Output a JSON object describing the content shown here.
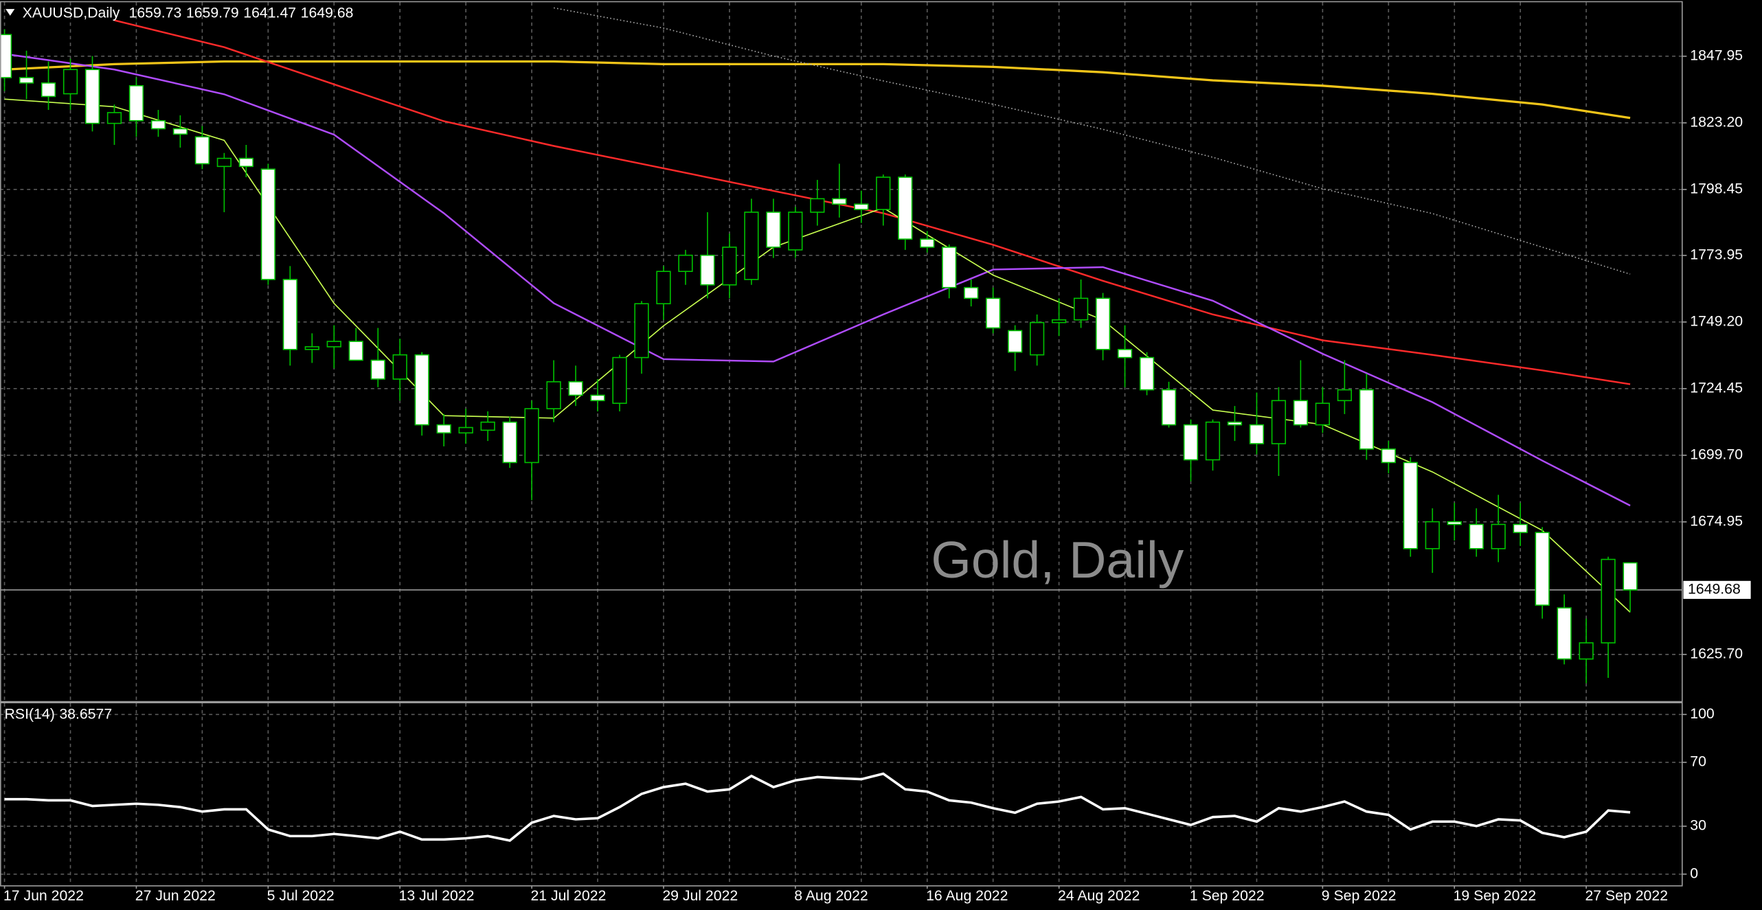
{
  "chart_data": [
    {
      "type": "candlestick",
      "symbol": "XAUUSD,Daily",
      "watermark": "Gold, Daily",
      "categories": [
        "17 Jun 2022",
        null,
        null,
        null,
        null,
        null,
        "27 Jun 2022",
        null,
        null,
        null,
        null,
        null,
        "5 Jul 2022",
        null,
        null,
        null,
        null,
        null,
        "13 Jul 2022",
        null,
        null,
        null,
        null,
        null,
        "21 Jul 2022",
        null,
        null,
        null,
        null,
        null,
        "29 Jul 2022",
        null,
        null,
        null,
        null,
        null,
        "8 Aug 2022",
        null,
        null,
        null,
        null,
        null,
        "16 Aug 2022",
        null,
        null,
        null,
        null,
        null,
        "24 Aug 2022",
        null,
        null,
        null,
        null,
        null,
        "1 Sep 2022",
        null,
        null,
        null,
        null,
        null,
        "9 Sep 2022",
        null,
        null,
        null,
        null,
        null,
        "19 Sep 2022",
        null,
        null,
        null,
        null,
        null,
        "27 Sep 2022",
        null,
        null
      ],
      "open": [
        1856,
        1840,
        1838,
        1834,
        1843,
        1823,
        1837,
        1824,
        1821,
        1818,
        1807,
        1810,
        1806,
        1765,
        1739,
        1740,
        1742,
        1735,
        1728,
        1737,
        1711,
        1708,
        1709,
        1712,
        1697,
        1717,
        1727,
        1722,
        1719,
        1736,
        1756,
        1768,
        1774,
        1763,
        1765,
        1790,
        1776,
        1790,
        1795,
        1793,
        1791,
        1803,
        1780,
        1777,
        1762,
        1758,
        1746,
        1737,
        1749,
        1750,
        1758,
        1739,
        1736,
        1724,
        1711,
        1698,
        1712,
        1711,
        1704,
        1720,
        1711,
        1720,
        1724,
        1702,
        1697,
        1665,
        1675,
        1674,
        1665,
        1674,
        1671,
        1643,
        1624,
        1630,
        1659.73
      ],
      "high": [
        1858,
        1850,
        1846,
        1847,
        1848,
        1830,
        1840,
        1828,
        1826,
        1822,
        1812,
        1815,
        1808,
        1770,
        1745,
        1748,
        1747,
        1747,
        1743,
        1738,
        1715,
        1717,
        1716,
        1714,
        1720,
        1735,
        1733,
        1728,
        1737,
        1757,
        1770,
        1776,
        1790,
        1782,
        1795,
        1795,
        1792,
        1802,
        1808,
        1798,
        1804,
        1804,
        1783,
        1778,
        1765,
        1762,
        1748,
        1752,
        1758,
        1765,
        1760,
        1748,
        1738,
        1727,
        1713,
        1713,
        1718,
        1723,
        1725,
        1735,
        1725,
        1735,
        1730,
        1705,
        1699,
        1680,
        1682,
        1680,
        1685,
        1682,
        1673,
        1648,
        1639,
        1662,
        1659.79
      ],
      "low": [
        1835,
        1832,
        1828,
        1828,
        1820,
        1815,
        1818,
        1818,
        1814,
        1806,
        1790,
        1803,
        1763,
        1733,
        1734,
        1732,
        1735,
        1725,
        1720,
        1707,
        1703,
        1704,
        1705,
        1695,
        1683,
        1712,
        1718,
        1716,
        1716,
        1730,
        1750,
        1763,
        1758,
        1758,
        1763,
        1773,
        1773,
        1785,
        1788,
        1786,
        1785,
        1776,
        1775,
        1758,
        1755,
        1745,
        1731,
        1733,
        1744,
        1747,
        1735,
        1725,
        1722,
        1710,
        1690,
        1694,
        1705,
        1700,
        1692,
        1710,
        1708,
        1715,
        1698,
        1693,
        1662,
        1656,
        1668,
        1662,
        1660,
        1666,
        1639,
        1622,
        1615,
        1617,
        1641.47
      ],
      "close": [
        1840,
        1838,
        1833,
        1843,
        1823,
        1827,
        1824,
        1821,
        1819,
        1808,
        1810,
        1807,
        1765,
        1739,
        1740,
        1742,
        1735,
        1728,
        1737,
        1711,
        1708,
        1710,
        1712,
        1697,
        1717,
        1727,
        1722,
        1720,
        1736,
        1756,
        1768,
        1774,
        1763,
        1777,
        1790,
        1777,
        1790,
        1795,
        1793,
        1791,
        1803,
        1780,
        1777,
        1762,
        1758,
        1747,
        1738,
        1749,
        1750,
        1758,
        1739,
        1736,
        1724,
        1711,
        1698,
        1712,
        1711,
        1704,
        1720,
        1711,
        1719,
        1724,
        1702,
        1697,
        1665,
        1675,
        1674,
        1665,
        1674,
        1671,
        1644,
        1624,
        1630,
        1661,
        1649.68
      ],
      "up_color": "#000000",
      "down_color": "#ffffff",
      "wick_color": "#00c000",
      "ylim": [
        1608.8,
        1868
      ],
      "yticks": [
        1847.95,
        {
          "value": 1823.2,
          "label": "1823.20"
        },
        1798.45,
        1773.95,
        {
          "value": 1749.2,
          "label": "1749.20"
        },
        1724.45,
        {
          "value": 1699.7,
          "label": "1699.70"
        },
        1674.95,
        {
          "value": 1625.7,
          "label": "1625.70"
        }
      ],
      "grid": true,
      "lines": [
        {
          "color": "#f0c419",
          "width": 2,
          "x": [
            0,
            5,
            10,
            15,
            20,
            25,
            30,
            35,
            40,
            45,
            50,
            55,
            60,
            65,
            70,
            74
          ],
          "values": [
            1843,
            1845,
            1846,
            1846,
            1846,
            1846,
            1845,
            1845,
            1845,
            1844,
            1842,
            1839,
            1837,
            1834,
            1830,
            1825
          ]
        },
        {
          "color": "#ff2a2a",
          "width": 1.5,
          "x": [
            5,
            10,
            15,
            20,
            25,
            30,
            35,
            40,
            45,
            50,
            55,
            60,
            65,
            70,
            74
          ],
          "values": [
            1861.3,
            1851.3,
            1837.5,
            1823.8,
            1814.6,
            1806.3,
            1797.9,
            1789.6,
            1777.9,
            1764.5,
            1752,
            1742.4,
            1737,
            1731.2,
            1726.1
          ]
        },
        {
          "color": "#b04cff",
          "width": 1.5,
          "x": [
            0,
            5,
            10,
            15,
            20,
            25,
            30,
            35,
            40,
            45,
            50,
            55,
            60,
            65,
            70,
            74
          ],
          "values": [
            1848.8,
            1843,
            1833.8,
            1818.8,
            1789.6,
            1756.2,
            1735.4,
            1734.5,
            1752,
            1768.7,
            1769.6,
            1757.1,
            1737.4,
            1719.4,
            1697.7,
            1681
          ]
        },
        {
          "color": "#c8ff50",
          "width": 1,
          "x": [
            0,
            5,
            10,
            15,
            20,
            25,
            30,
            35,
            40,
            45,
            50,
            55,
            60,
            65,
            70,
            74
          ],
          "values": [
            1832,
            1829.2,
            1816.7,
            1756.1,
            1714.4,
            1713.5,
            1747.8,
            1777,
            1791.6,
            1766.6,
            1749.9,
            1716.5,
            1711.1,
            1693.5,
            1671.8,
            1641.4
          ]
        },
        {
          "color": "#aaaaaa",
          "width": 1,
          "style": "dotted",
          "x": [
            25,
            30,
            35,
            40,
            45,
            50,
            55,
            60,
            65,
            70,
            74
          ],
          "values": [
            1865.9,
            1858.4,
            1848,
            1838.8,
            1830.1,
            1820.8,
            1810.4,
            1798.7,
            1789.5,
            1777,
            1767
          ]
        }
      ]
    },
    {
      "type": "line",
      "title": "RSI(14)",
      "color": "#ffffff",
      "values": [
        46.9,
        46.9,
        46.2,
        46.2,
        42.7,
        43.4,
        44.1,
        43.4,
        42,
        39.2,
        40.6,
        40.6,
        28,
        23.8,
        23.8,
        25.2,
        23.8,
        22.4,
        26.6,
        21.7,
        21.7,
        22.4,
        23.8,
        21,
        32.2,
        36.4,
        34.3,
        35,
        42,
        50.3,
        54.5,
        56.6,
        51.7,
        53.1,
        61.5,
        54.5,
        58.7,
        60.8,
        60.1,
        59.4,
        62.9,
        53.1,
        51.7,
        46.2,
        44.8,
        41.3,
        38.5,
        44.1,
        45.5,
        48.3,
        40.6,
        41.3,
        37.8,
        34.3,
        30.8,
        35.7,
        36.4,
        32.9,
        41.3,
        39.2,
        42,
        45.5,
        39.2,
        37.1,
        28,
        32.9,
        32.9,
        30.1,
        34.3,
        33.6,
        25.9,
        23.1,
        26.6,
        39.9,
        38.6577
      ],
      "ylim": [
        -8.4,
        106.3
      ],
      "yticks": [
        100,
        70,
        30,
        0
      ],
      "grid": true
    }
  ]
}
